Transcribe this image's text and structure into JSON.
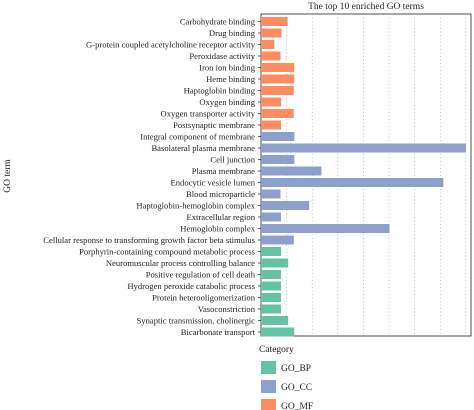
{
  "chart_data": {
    "type": "bar",
    "orientation": "horizontal",
    "title": "The top 10 enriched GO terms",
    "ylabel": "GO term",
    "xlabel": "",
    "grid": true,
    "legend": {
      "title": "Category",
      "position": "bottom-left",
      "entries": [
        {
          "name": "GO_BP",
          "color": "#66c2a5"
        },
        {
          "name": "GO_CC",
          "color": "#8da0cb"
        },
        {
          "name": "GO_MF",
          "color": "#fc8d62"
        }
      ]
    },
    "xlim": [
      0,
      41
    ],
    "bars": [
      {
        "term": "Carbohydrate binding",
        "value": 5.2,
        "category": "GO_MF"
      },
      {
        "term": "Drug binding",
        "value": 4.0,
        "category": "GO_MF"
      },
      {
        "term": "G-protein coupled acetylcholine receptor activity",
        "value": 2.6,
        "category": "GO_MF"
      },
      {
        "term": "Peroxidase activity",
        "value": 3.8,
        "category": "GO_MF"
      },
      {
        "term": "Iron ion binding",
        "value": 6.5,
        "category": "GO_MF"
      },
      {
        "term": "Heme binding",
        "value": 6.5,
        "category": "GO_MF"
      },
      {
        "term": "Haptoglobin binding",
        "value": 6.4,
        "category": "GO_MF"
      },
      {
        "term": "Oxygen binding",
        "value": 3.9,
        "category": "GO_MF"
      },
      {
        "term": "Oxygen transporter activity",
        "value": 6.4,
        "category": "GO_MF"
      },
      {
        "term": "Postsynaptic membrane",
        "value": 3.9,
        "category": "GO_MF"
      },
      {
        "term": "Integral component of membrane",
        "value": 6.5,
        "category": "GO_CC"
      },
      {
        "term": "Basolateral plasma membrane",
        "value": 40.0,
        "category": "GO_CC"
      },
      {
        "term": "Cell junction",
        "value": 6.5,
        "category": "GO_CC"
      },
      {
        "term": "Plasma membrane",
        "value": 11.8,
        "category": "GO_CC"
      },
      {
        "term": "Endocytic vesicle lumen",
        "value": 35.6,
        "category": "GO_CC"
      },
      {
        "term": "Blood microparticle",
        "value": 3.8,
        "category": "GO_CC"
      },
      {
        "term": "Haptoglobin-hemoglobin complex",
        "value": 9.4,
        "category": "GO_CC"
      },
      {
        "term": "Extracellular region",
        "value": 3.9,
        "category": "GO_CC"
      },
      {
        "term": "Hemoglobin complex",
        "value": 25.1,
        "category": "GO_CC"
      },
      {
        "term": "Cellular response to transforming growth factor beta stimulus",
        "value": 6.4,
        "category": "GO_CC"
      },
      {
        "term": "Porphyrin-containing compound metabolic process",
        "value": 3.9,
        "category": "GO_BP"
      },
      {
        "term": "Neuromuscular process controlling balance",
        "value": 5.3,
        "category": "GO_BP"
      },
      {
        "term": "Positive regulation of cell death",
        "value": 3.9,
        "category": "GO_BP"
      },
      {
        "term": "Hydrogen peroxide catabolic process",
        "value": 3.9,
        "category": "GO_BP"
      },
      {
        "term": "Protein heterooligomerization",
        "value": 3.9,
        "category": "GO_BP"
      },
      {
        "term": "Vasoconstriction",
        "value": 3.9,
        "category": "GO_BP"
      },
      {
        "term": "Synaptic transmission, cholinergic",
        "value": 5.3,
        "category": "GO_BP"
      },
      {
        "term": "Bicarbonate transport",
        "value": 6.5,
        "category": "GO_BP"
      }
    ]
  }
}
